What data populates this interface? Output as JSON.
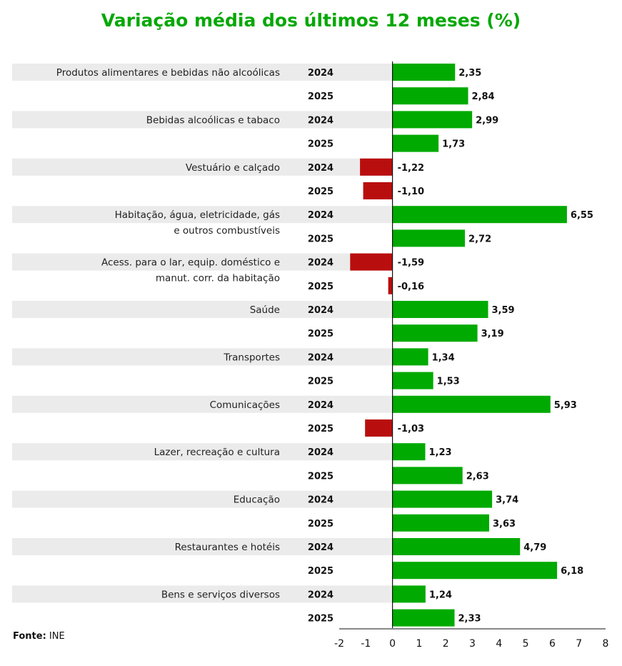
{
  "chart_data": {
    "type": "bar",
    "orientation": "horizontal",
    "title": "Variação média dos últimos 12 meses (%)",
    "xlabel": "",
    "ylabel": "",
    "xlim": [
      -2,
      8
    ],
    "x_ticks": [
      "-2",
      "-1",
      "0",
      "1",
      "2",
      "3",
      "4",
      "5",
      "6",
      "7",
      "8"
    ],
    "series_names": [
      "2024",
      "2025"
    ],
    "colors": {
      "positive": "#00aa00",
      "negative": "#b90e0e",
      "band": "#ebebeb",
      "title": "#07a807"
    },
    "categories": [
      {
        "label_lines": [
          "Produtos alimentares e bebidas não alcoólicas"
        ],
        "values": [
          2.35,
          2.84
        ],
        "value_labels": [
          "2,35",
          "2,84"
        ]
      },
      {
        "label_lines": [
          "Bebidas alcoólicas e tabaco"
        ],
        "values": [
          2.99,
          1.73
        ],
        "value_labels": [
          "2,99",
          "1,73"
        ]
      },
      {
        "label_lines": [
          "Vestuário e calçado"
        ],
        "values": [
          -1.22,
          -1.1
        ],
        "value_labels": [
          "-1,22",
          "-1,10"
        ]
      },
      {
        "label_lines": [
          "Habitação, água, eletricidade, gás",
          "e outros combustíveis"
        ],
        "values": [
          6.55,
          2.72
        ],
        "value_labels": [
          "6,55",
          "2,72"
        ]
      },
      {
        "label_lines": [
          "Acess. para o lar, equip. doméstico e",
          "manut. corr. da habitação"
        ],
        "values": [
          -1.59,
          -0.16
        ],
        "value_labels": [
          "-1,59",
          "-0,16"
        ]
      },
      {
        "label_lines": [
          "Saúde"
        ],
        "values": [
          3.59,
          3.19
        ],
        "value_labels": [
          "3,59",
          "3,19"
        ]
      },
      {
        "label_lines": [
          "Transportes"
        ],
        "values": [
          1.34,
          1.53
        ],
        "value_labels": [
          "1,34",
          "1,53"
        ]
      },
      {
        "label_lines": [
          "Comunicações"
        ],
        "values": [
          5.93,
          -1.03
        ],
        "value_labels": [
          "5,93",
          "-1,03"
        ]
      },
      {
        "label_lines": [
          "Lazer, recreação e cultura"
        ],
        "values": [
          1.23,
          2.63
        ],
        "value_labels": [
          "1,23",
          "2,63"
        ]
      },
      {
        "label_lines": [
          "Educação"
        ],
        "values": [
          3.74,
          3.63
        ],
        "value_labels": [
          "3,74",
          "3,63"
        ]
      },
      {
        "label_lines": [
          "Restaurantes e hotéis"
        ],
        "values": [
          4.79,
          6.18
        ],
        "value_labels": [
          "4,79",
          "6,18"
        ]
      },
      {
        "label_lines": [
          "Bens e serviços diversos"
        ],
        "values": [
          1.24,
          2.33
        ],
        "value_labels": [
          "1,24",
          "2,33"
        ]
      }
    ]
  },
  "source": {
    "label": "Fonte:",
    "value": "INE"
  }
}
